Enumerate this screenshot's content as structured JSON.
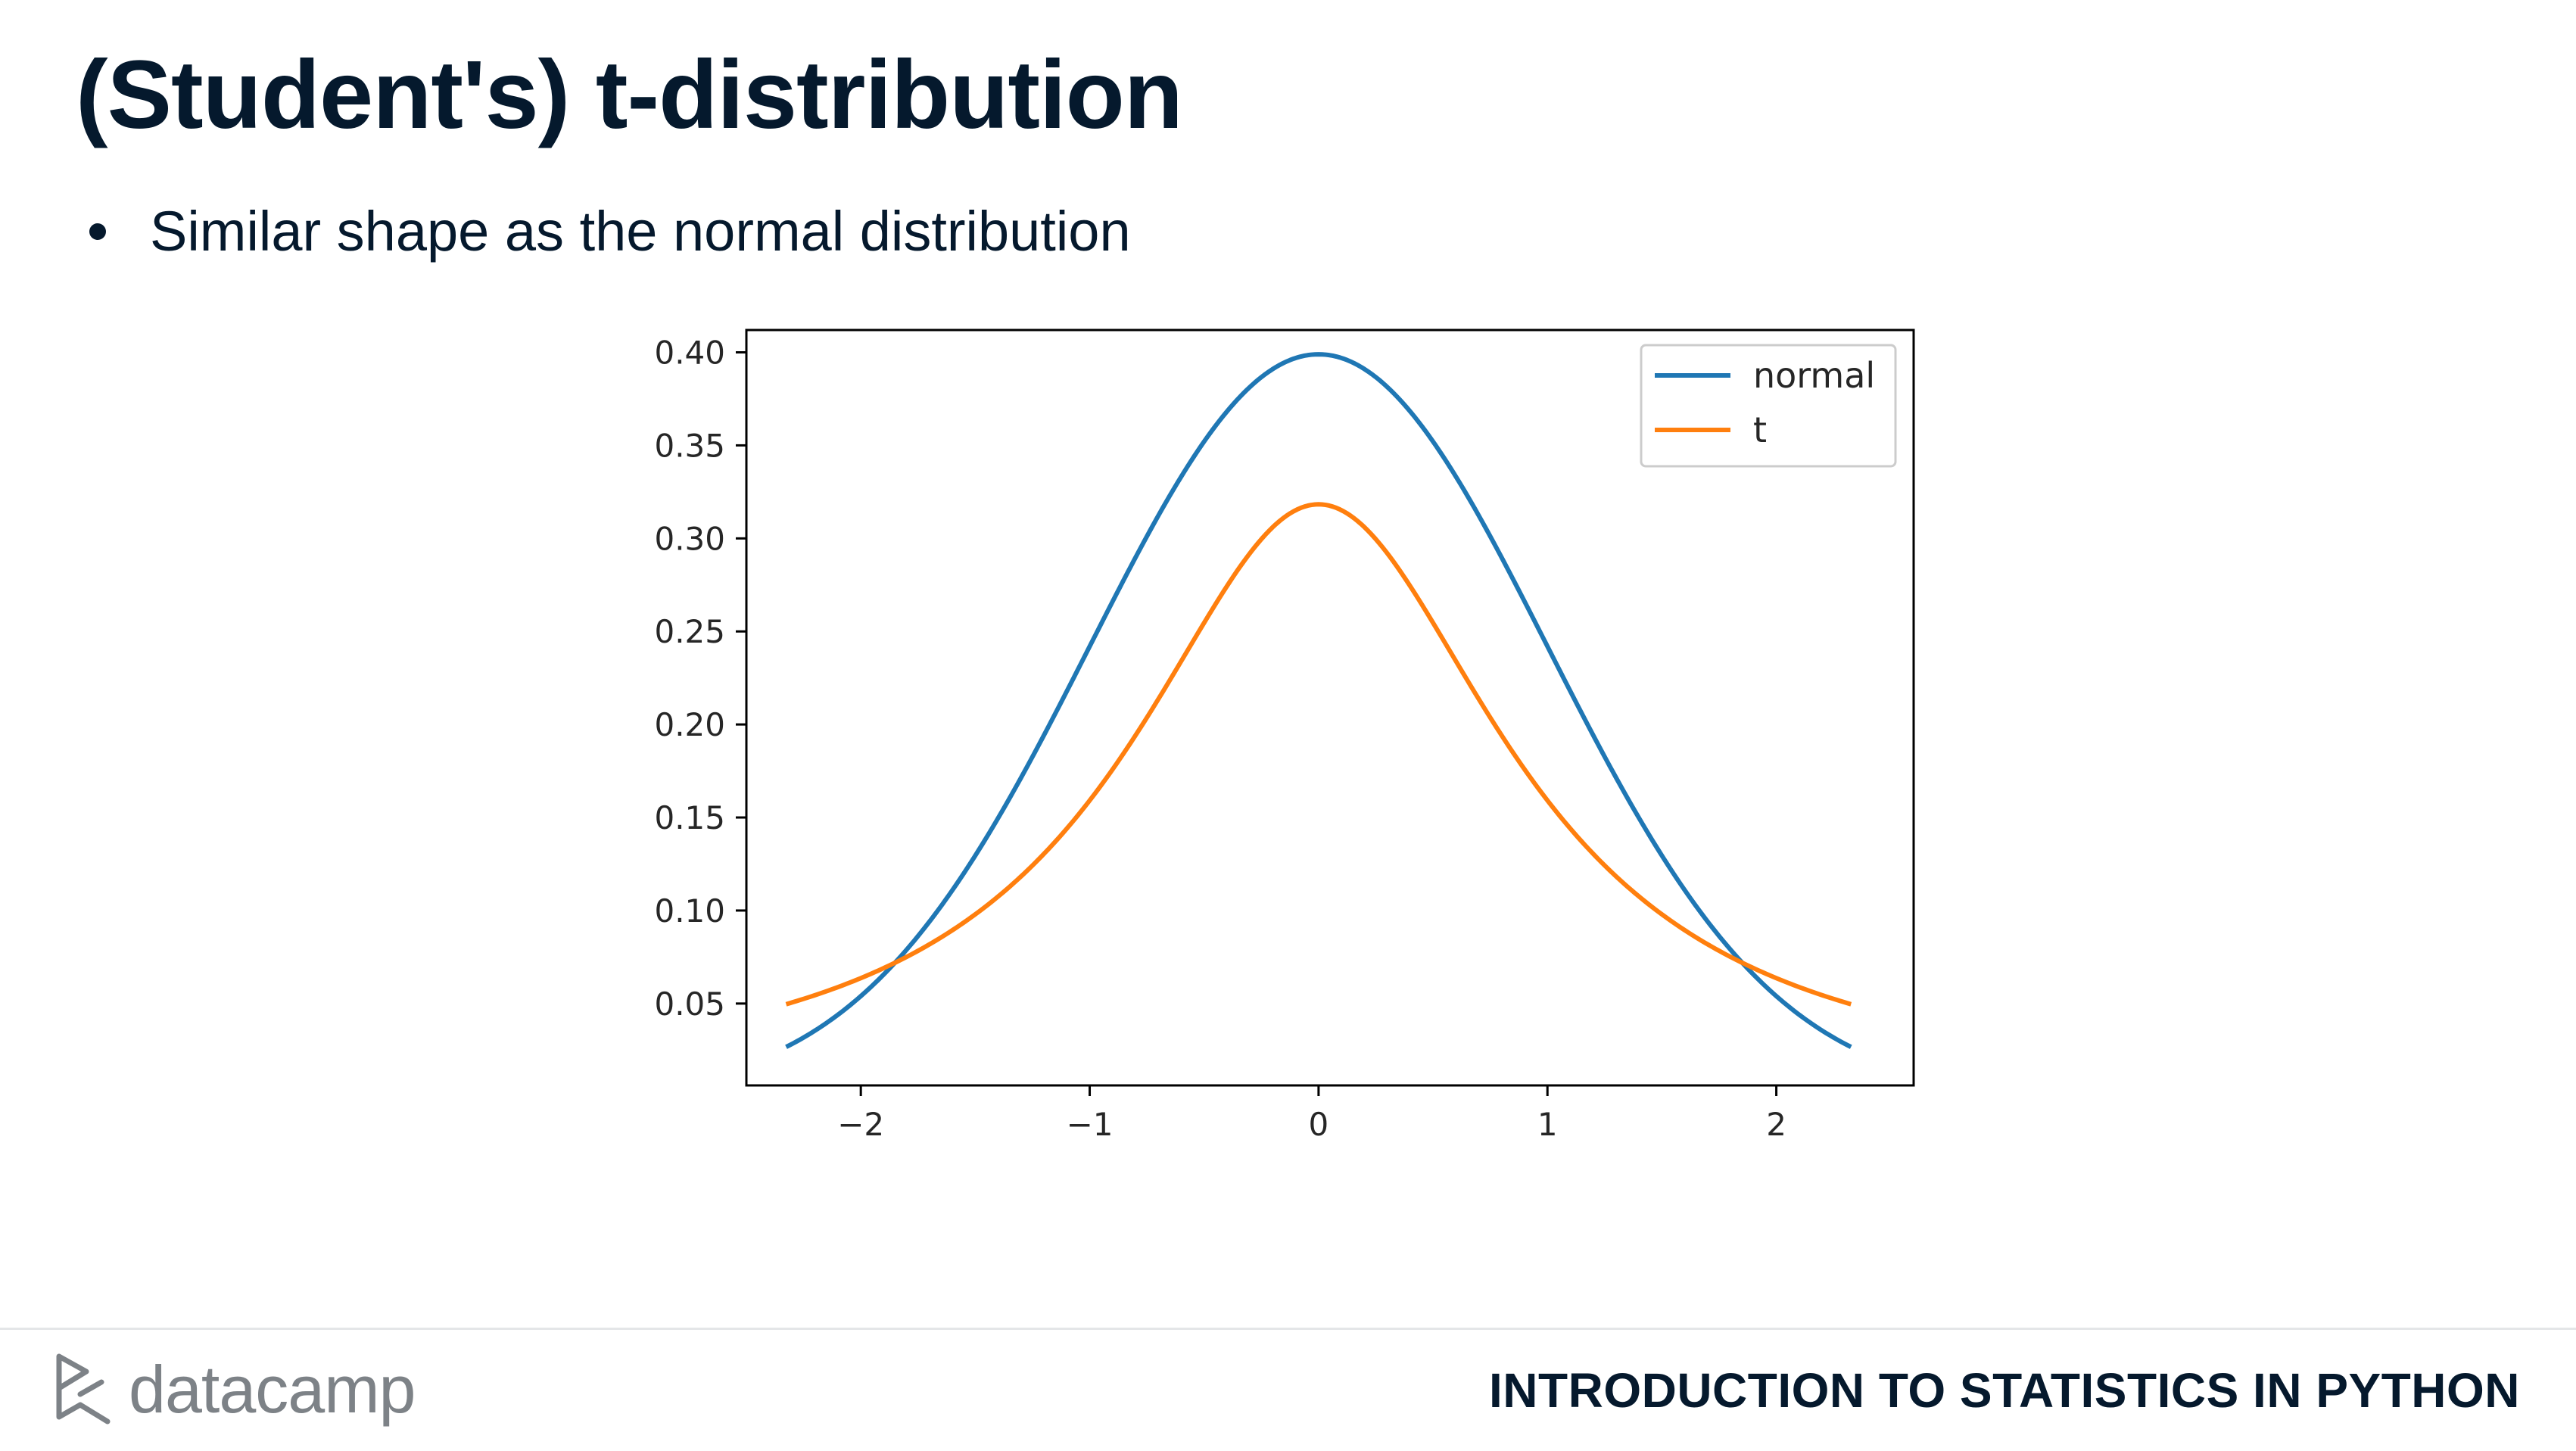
{
  "slide": {
    "title": "(Student's) t-distribution",
    "bullets": [
      "Similar shape as the normal distribution"
    ]
  },
  "footer": {
    "logo_text": "datacamp",
    "course_name": "INTRODUCTION TO STATISTICS IN PYTHON"
  },
  "colors": {
    "title_text": "#05192d",
    "normal_series": "#1f77b4",
    "t_series": "#ff7f0e",
    "logo_gray": "#7d8287"
  },
  "chart_data": {
    "type": "line",
    "title": "",
    "xlabel": "",
    "ylabel": "",
    "xlim": [
      -2.5,
      2.6
    ],
    "ylim": [
      0.006,
      0.412
    ],
    "x_domain": [
      -2.3263,
      2.3263
    ],
    "x_ticks": [
      -2,
      -1,
      0,
      1,
      2
    ],
    "x_tick_labels": [
      "−2",
      "−1",
      "0",
      "1",
      "2"
    ],
    "y_ticks": [
      0.05,
      0.1,
      0.15,
      0.2,
      0.25,
      0.3,
      0.35,
      0.4
    ],
    "y_tick_labels": [
      "0.05",
      "0.10",
      "0.15",
      "0.20",
      "0.25",
      "0.30",
      "0.35",
      "0.40"
    ],
    "grid": false,
    "legend_position": "top-right",
    "series": [
      {
        "name": "normal",
        "color": "#1f77b4",
        "x": [
          -2.33,
          -2.0,
          -1.5,
          -1.0,
          -0.5,
          0.0,
          0.5,
          1.0,
          1.5,
          2.0,
          2.33
        ],
        "y": [
          0.027,
          0.054,
          0.13,
          0.242,
          0.352,
          0.399,
          0.352,
          0.242,
          0.13,
          0.054,
          0.027
        ]
      },
      {
        "name": "t",
        "color": "#ff7f0e",
        "x": [
          -2.33,
          -2.0,
          -1.5,
          -1.0,
          -0.5,
          0.0,
          0.5,
          1.0,
          1.5,
          2.0,
          2.33
        ],
        "y": [
          0.05,
          0.064,
          0.098,
          0.159,
          0.255,
          0.318,
          0.255,
          0.159,
          0.098,
          0.064,
          0.05
        ]
      }
    ]
  }
}
